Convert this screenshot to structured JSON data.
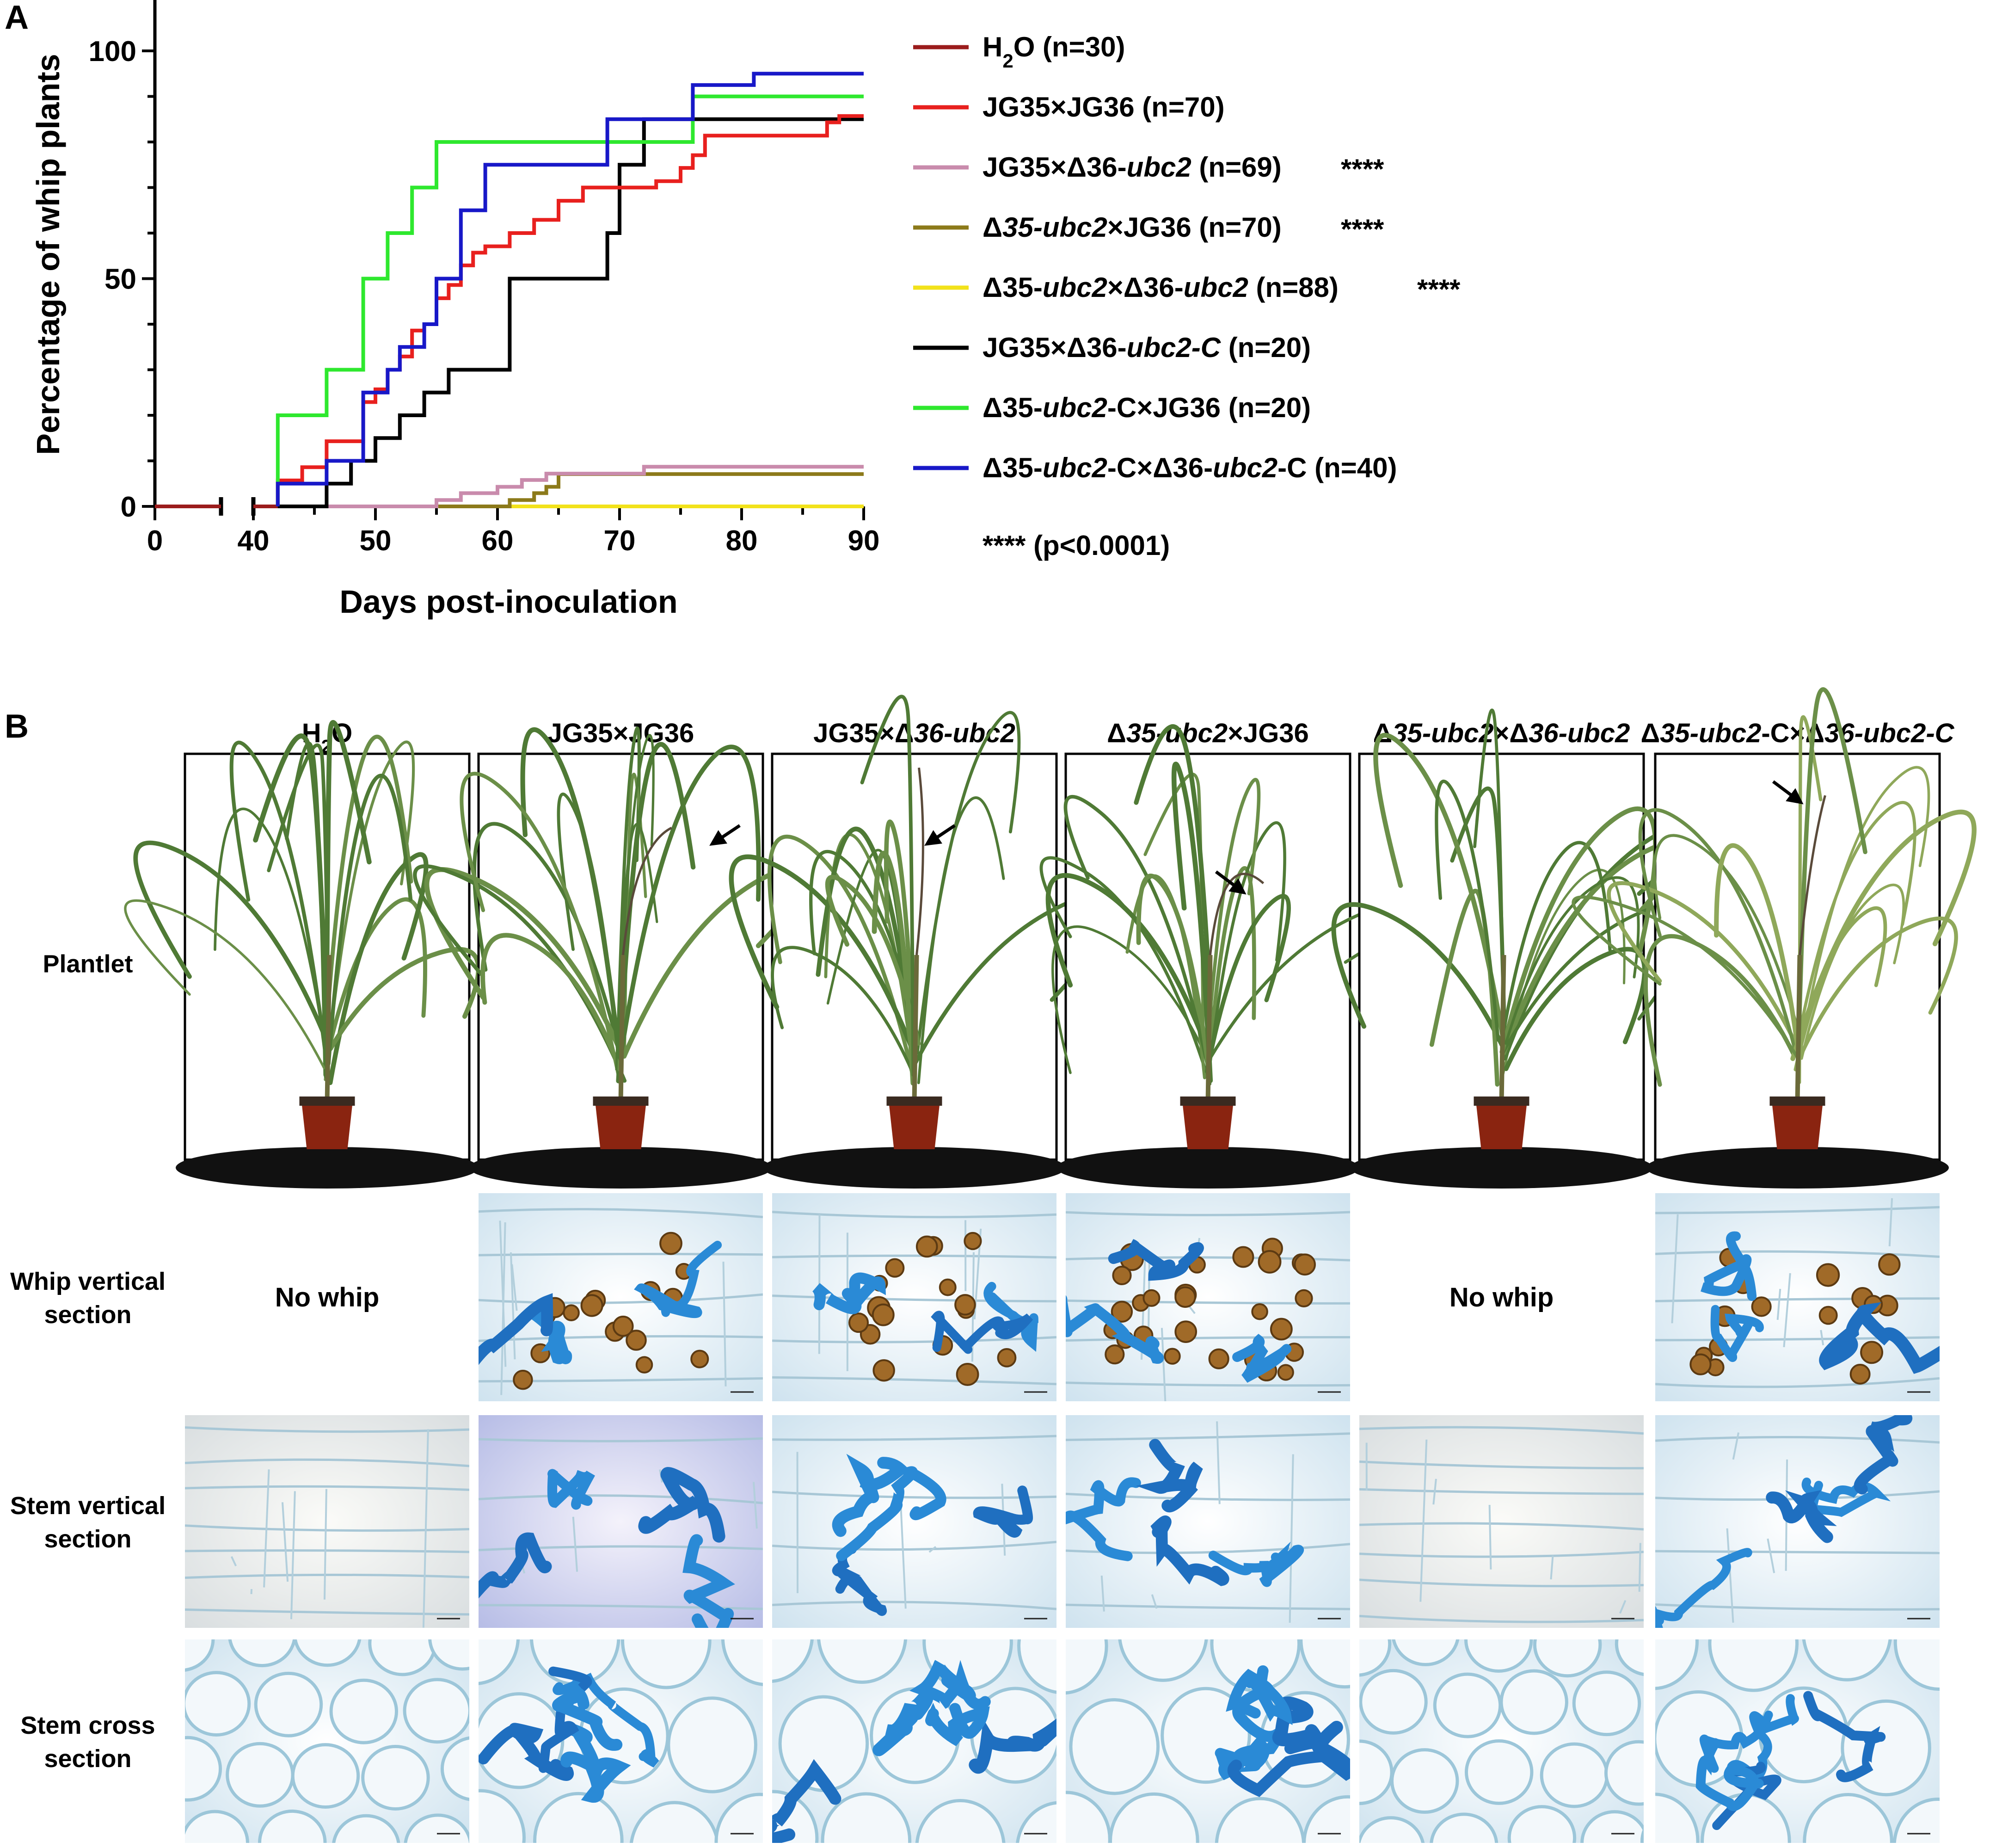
{
  "panel_a": {
    "letter": "A",
    "chart_data": {
      "type": "line",
      "subtype": "kaplan-meier step",
      "xlabel": "Days post-inoculation",
      "ylabel": "Percentage of whip plants",
      "xlim": [
        0,
        90
      ],
      "ylim": [
        0,
        100
      ],
      "x_axis_break": [
        35,
        40
      ],
      "x_ticks": [
        0,
        40,
        50,
        60,
        70,
        80,
        90
      ],
      "y_ticks": [
        0,
        50,
        100
      ],
      "legend_position": "right",
      "footnote": "**** (p<0.0001)",
      "series": [
        {
          "name": "H₂O (n=30)",
          "label_parts": [
            [
              "H",
              "n"
            ],
            [
              "2",
              "sub"
            ],
            [
              "O (n=30)",
              "n"
            ]
          ],
          "stars": "",
          "color": "#9b1c1c",
          "points": [
            [
              0,
              0
            ],
            [
              90,
              0
            ]
          ]
        },
        {
          "name": "JG35×JG36 (n=70)",
          "label_parts": [
            [
              "JG35×JG36 (n=70)",
              "n"
            ]
          ],
          "stars": "",
          "color": "#e8201e",
          "points": [
            [
              42,
              0
            ],
            [
              42,
              5.7
            ],
            [
              44,
              5.7
            ],
            [
              44,
              8.6
            ],
            [
              46,
              8.6
            ],
            [
              46,
              14.3
            ],
            [
              49,
              14.3
            ],
            [
              49,
              22.9
            ],
            [
              50,
              22.9
            ],
            [
              50,
              25.7
            ],
            [
              51,
              25.7
            ],
            [
              51,
              30
            ],
            [
              52,
              30
            ],
            [
              52,
              32.9
            ],
            [
              53,
              32.9
            ],
            [
              53,
              38.6
            ],
            [
              54,
              38.6
            ],
            [
              54,
              40
            ],
            [
              55,
              40
            ],
            [
              55,
              45.7
            ],
            [
              56,
              45.7
            ],
            [
              56,
              48.6
            ],
            [
              57,
              48.6
            ],
            [
              57,
              52.9
            ],
            [
              58,
              52.9
            ],
            [
              58,
              55.7
            ],
            [
              59,
              55.7
            ],
            [
              59,
              57.1
            ],
            [
              61,
              57.1
            ],
            [
              61,
              60
            ],
            [
              63,
              60
            ],
            [
              63,
              62.9
            ],
            [
              65,
              62.9
            ],
            [
              65,
              67.1
            ],
            [
              67,
              67.1
            ],
            [
              67,
              70
            ],
            [
              71,
              70
            ],
            [
              71,
              70
            ],
            [
              73,
              70
            ],
            [
              73,
              71.4
            ],
            [
              75,
              71.4
            ],
            [
              75,
              74.3
            ],
            [
              76,
              74.3
            ],
            [
              76,
              77.1
            ],
            [
              77,
              77.1
            ],
            [
              77,
              81.4
            ],
            [
              87,
              81.4
            ],
            [
              87,
              84.3
            ],
            [
              88,
              84.3
            ],
            [
              88,
              85.7
            ],
            [
              90,
              85.7
            ]
          ]
        },
        {
          "name": "JG35×Δ36-ubc2 (n=69)",
          "label_parts": [
            [
              "JG35×Δ36-",
              "n"
            ],
            [
              "ubc2",
              "i"
            ],
            [
              " (n=69)",
              "n"
            ]
          ],
          "stars": "****",
          "color": "#c98bac",
          "points": [
            [
              42,
              0
            ],
            [
              55,
              0
            ],
            [
              55,
              1.4
            ],
            [
              57,
              1.4
            ],
            [
              57,
              2.9
            ],
            [
              60,
              2.9
            ],
            [
              60,
              4.3
            ],
            [
              62,
              4.3
            ],
            [
              62,
              5.8
            ],
            [
              64,
              5.8
            ],
            [
              64,
              7.2
            ],
            [
              72,
              7.2
            ],
            [
              72,
              8.7
            ],
            [
              90,
              8.7
            ]
          ]
        },
        {
          "name": "Δ35-ubc2×JG36 (n=70)",
          "label_parts": [
            [
              "Δ",
              "n"
            ],
            [
              "35-ubc2",
              "i"
            ],
            [
              "×JG36 (n=70)",
              "n"
            ]
          ],
          "stars": "****",
          "color": "#8c7a1a",
          "points": [
            [
              42,
              0
            ],
            [
              61,
              0
            ],
            [
              61,
              1.4
            ],
            [
              63,
              1.4
            ],
            [
              63,
              2.9
            ],
            [
              64,
              2.9
            ],
            [
              64,
              4.3
            ],
            [
              65,
              4.3
            ],
            [
              65,
              7.1
            ],
            [
              90,
              7.1
            ]
          ]
        },
        {
          "name": "Δ35-ubc2×Δ36-ubc2 (n=88)",
          "label_parts": [
            [
              "Δ35-",
              "n"
            ],
            [
              "ubc2",
              "i"
            ],
            [
              "×Δ36-",
              "n"
            ],
            [
              "ubc2",
              "i"
            ],
            [
              " (n=88)",
              "n"
            ]
          ],
          "stars": "****",
          "color": "#f2e21a",
          "points": [
            [
              42,
              0
            ],
            [
              90,
              0
            ]
          ]
        },
        {
          "name": "JG35×Δ36-ubc2-C (n=20)",
          "label_parts": [
            [
              "JG35×Δ36-",
              "n"
            ],
            [
              "ubc2-C",
              "i"
            ],
            [
              " (n=20)",
              "n"
            ]
          ],
          "stars": "",
          "color": "#000000",
          "points": [
            [
              42,
              0
            ],
            [
              46,
              0
            ],
            [
              46,
              5
            ],
            [
              47,
              5
            ],
            [
              47,
              5
            ],
            [
              48,
              5
            ],
            [
              48,
              10
            ],
            [
              50,
              10
            ],
            [
              50,
              15
            ],
            [
              52,
              15
            ],
            [
              52,
              20
            ],
            [
              54,
              20
            ],
            [
              54,
              25
            ],
            [
              56,
              25
            ],
            [
              56,
              30
            ],
            [
              58,
              30
            ],
            [
              58,
              30
            ],
            [
              61,
              30
            ],
            [
              61,
              50
            ],
            [
              69,
              50
            ],
            [
              69,
              60
            ],
            [
              70,
              60
            ],
            [
              70,
              75
            ],
            [
              72,
              75
            ],
            [
              72,
              85
            ],
            [
              90,
              85
            ]
          ]
        },
        {
          "name": "Δ35-ubc2-C×JG36 (n=20)",
          "label_parts": [
            [
              "Δ35-",
              "n"
            ],
            [
              "ubc2",
              "i"
            ],
            [
              "-C×JG36 (n=20)",
              "n"
            ]
          ],
          "stars": "",
          "color": "#2ee82e",
          "points": [
            [
              42,
              0
            ],
            [
              42,
              20
            ],
            [
              46,
              20
            ],
            [
              46,
              30
            ],
            [
              49,
              30
            ],
            [
              49,
              50
            ],
            [
              51,
              50
            ],
            [
              51,
              60
            ],
            [
              53,
              60
            ],
            [
              53,
              70
            ],
            [
              55,
              70
            ],
            [
              55,
              80
            ],
            [
              76,
              80
            ],
            [
              76,
              90
            ],
            [
              90,
              90
            ]
          ]
        },
        {
          "name": "Δ35-ubc2-C×Δ36-ubc2-C (n=40)",
          "label_parts": [
            [
              "Δ35-",
              "n"
            ],
            [
              "ubc2",
              "i"
            ],
            [
              "-C×Δ36-",
              "n"
            ],
            [
              "ubc2",
              "i"
            ],
            [
              "-C (n=40)",
              "n"
            ]
          ],
          "stars": "",
          "color": "#1818c8",
          "points": [
            [
              42,
              0
            ],
            [
              42,
              5
            ],
            [
              46,
              5
            ],
            [
              46,
              10
            ],
            [
              49,
              10
            ],
            [
              49,
              25
            ],
            [
              51,
              25
            ],
            [
              51,
              30
            ],
            [
              52,
              30
            ],
            [
              52,
              35
            ],
            [
              54,
              35
            ],
            [
              54,
              40
            ],
            [
              55,
              40
            ],
            [
              55,
              50
            ],
            [
              57,
              50
            ],
            [
              57,
              65
            ],
            [
              59,
              65
            ],
            [
              59,
              75
            ],
            [
              69,
              75
            ],
            [
              69,
              85
            ],
            [
              76,
              85
            ],
            [
              76,
              92.5
            ],
            [
              81,
              92.5
            ],
            [
              81,
              95
            ],
            [
              90,
              95
            ]
          ]
        }
      ]
    }
  },
  "panel_b": {
    "letter": "B",
    "columns": [
      {
        "id": "h2o",
        "parts": [
          [
            "H",
            "n"
          ],
          [
            "2",
            "sub"
          ],
          [
            "O",
            "n"
          ]
        ]
      },
      {
        "id": "jg35-jg36",
        "parts": [
          [
            "JG35×JG36",
            "n"
          ]
        ]
      },
      {
        "id": "jg35-d36",
        "parts": [
          [
            "JG35×Δ",
            "n"
          ],
          [
            "36-ubc2",
            "i"
          ]
        ]
      },
      {
        "id": "d35-jg36",
        "parts": [
          [
            "Δ",
            "n"
          ],
          [
            "35-ubc2",
            "i"
          ],
          [
            "×JG36",
            "n"
          ]
        ]
      },
      {
        "id": "d35-d36",
        "parts": [
          [
            "Δ",
            "n"
          ],
          [
            "35-ubc2",
            "i"
          ],
          [
            "×Δ",
            "n"
          ],
          [
            "36-ubc2",
            "i"
          ]
        ]
      },
      {
        "id": "d35c-d36c",
        "parts": [
          [
            "Δ",
            "n"
          ],
          [
            "35-ubc2",
            "i"
          ],
          [
            "-C×Δ",
            "n"
          ],
          [
            "36-ubc2-C",
            "i"
          ]
        ]
      }
    ],
    "rows": [
      {
        "id": "plantlet",
        "lines": [
          "Plantlet"
        ]
      },
      {
        "id": "whip-vertical",
        "lines": [
          "Whip vertical",
          "section"
        ]
      },
      {
        "id": "stem-vertical",
        "lines": [
          "Stem vertical",
          "section"
        ]
      },
      {
        "id": "stem-cross",
        "lines": [
          "Stem cross",
          "section"
        ]
      }
    ],
    "no_whip_label": "No whip",
    "colors": {
      "stain_blue": "#1f7fcf",
      "leaf_green": "#4f7a35",
      "pot_red": "#8a2410",
      "spore_brown": "#a06a28"
    }
  }
}
